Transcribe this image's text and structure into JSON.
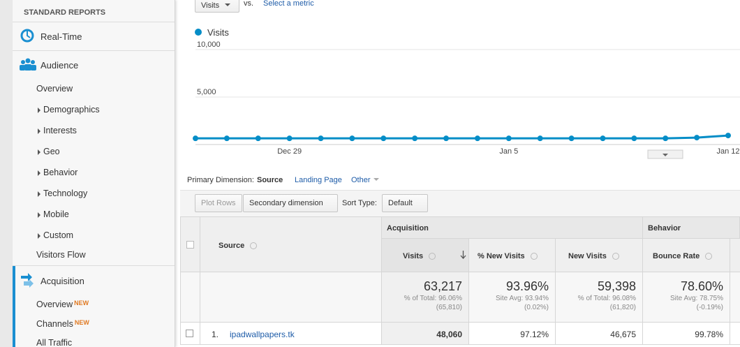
{
  "sidebar": {
    "title": "STANDARD REPORTS",
    "sections": [
      {
        "label": "Real-Time"
      },
      {
        "label": "Audience",
        "items": [
          "Overview",
          "Demographics",
          "Interests",
          "Geo",
          "Behavior",
          "Technology",
          "Mobile",
          "Custom",
          "Visitors Flow"
        ]
      },
      {
        "label": "Acquisition",
        "items": [
          {
            "label": "Overview",
            "badge": "NEW"
          },
          {
            "label": "Channels",
            "badge": "NEW"
          },
          {
            "label": "All Traffic"
          }
        ]
      }
    ]
  },
  "metric_selector": {
    "metric": "Visits",
    "vs": "vs.",
    "link": "Select a metric"
  },
  "chart_data": {
    "type": "line",
    "categories": [
      null,
      null,
      null,
      "Dec 29",
      null,
      null,
      null,
      null,
      null,
      null,
      "Jan 5",
      null,
      null,
      null,
      null,
      null,
      null,
      "Jan 12"
    ],
    "series": [
      {
        "name": "Visits",
        "color": "#058dc7",
        "values": [
          650,
          650,
          650,
          650,
          650,
          650,
          650,
          650,
          650,
          650,
          650,
          650,
          650,
          650,
          650,
          650,
          730,
          950
        ]
      }
    ],
    "ylim": [
      0,
      10000
    ],
    "yticks": [
      {
        "value": 5000,
        "label": "5,000"
      },
      {
        "value": 10000,
        "label": "10,000"
      }
    ],
    "grid": true
  },
  "dimension_bar": {
    "label": "Primary Dimension:",
    "options": [
      "Source",
      "Landing Page",
      "Other"
    ]
  },
  "toolbar": {
    "plot_rows": "Plot Rows",
    "secondary": "Secondary dimension",
    "sort_label": "Sort Type:",
    "sort_value": "Default"
  },
  "table": {
    "groups": [
      "Acquisition",
      "Behavior"
    ],
    "columns": [
      "Source",
      "Visits",
      "% New Visits",
      "New Visits",
      "Bounce Rate"
    ],
    "totals": [
      {
        "value": "63,217",
        "note": [
          "% of Total: 96.06%",
          "(65,810)"
        ]
      },
      {
        "value": "93.96%",
        "note": [
          "Site Avg: 93.94%",
          "(0.02%)"
        ]
      },
      {
        "value": "59,398",
        "note": [
          "% of Total: 96.08%",
          "(61,820)"
        ]
      },
      {
        "value": "78.60%",
        "note": [
          "Site Avg: 78.75%",
          "(-0.19%)"
        ]
      }
    ],
    "rows": [
      [
        "1.",
        "ipadwallpapers.tk",
        "48,060",
        "97.12%",
        "46,675",
        "99.78%"
      ]
    ]
  }
}
